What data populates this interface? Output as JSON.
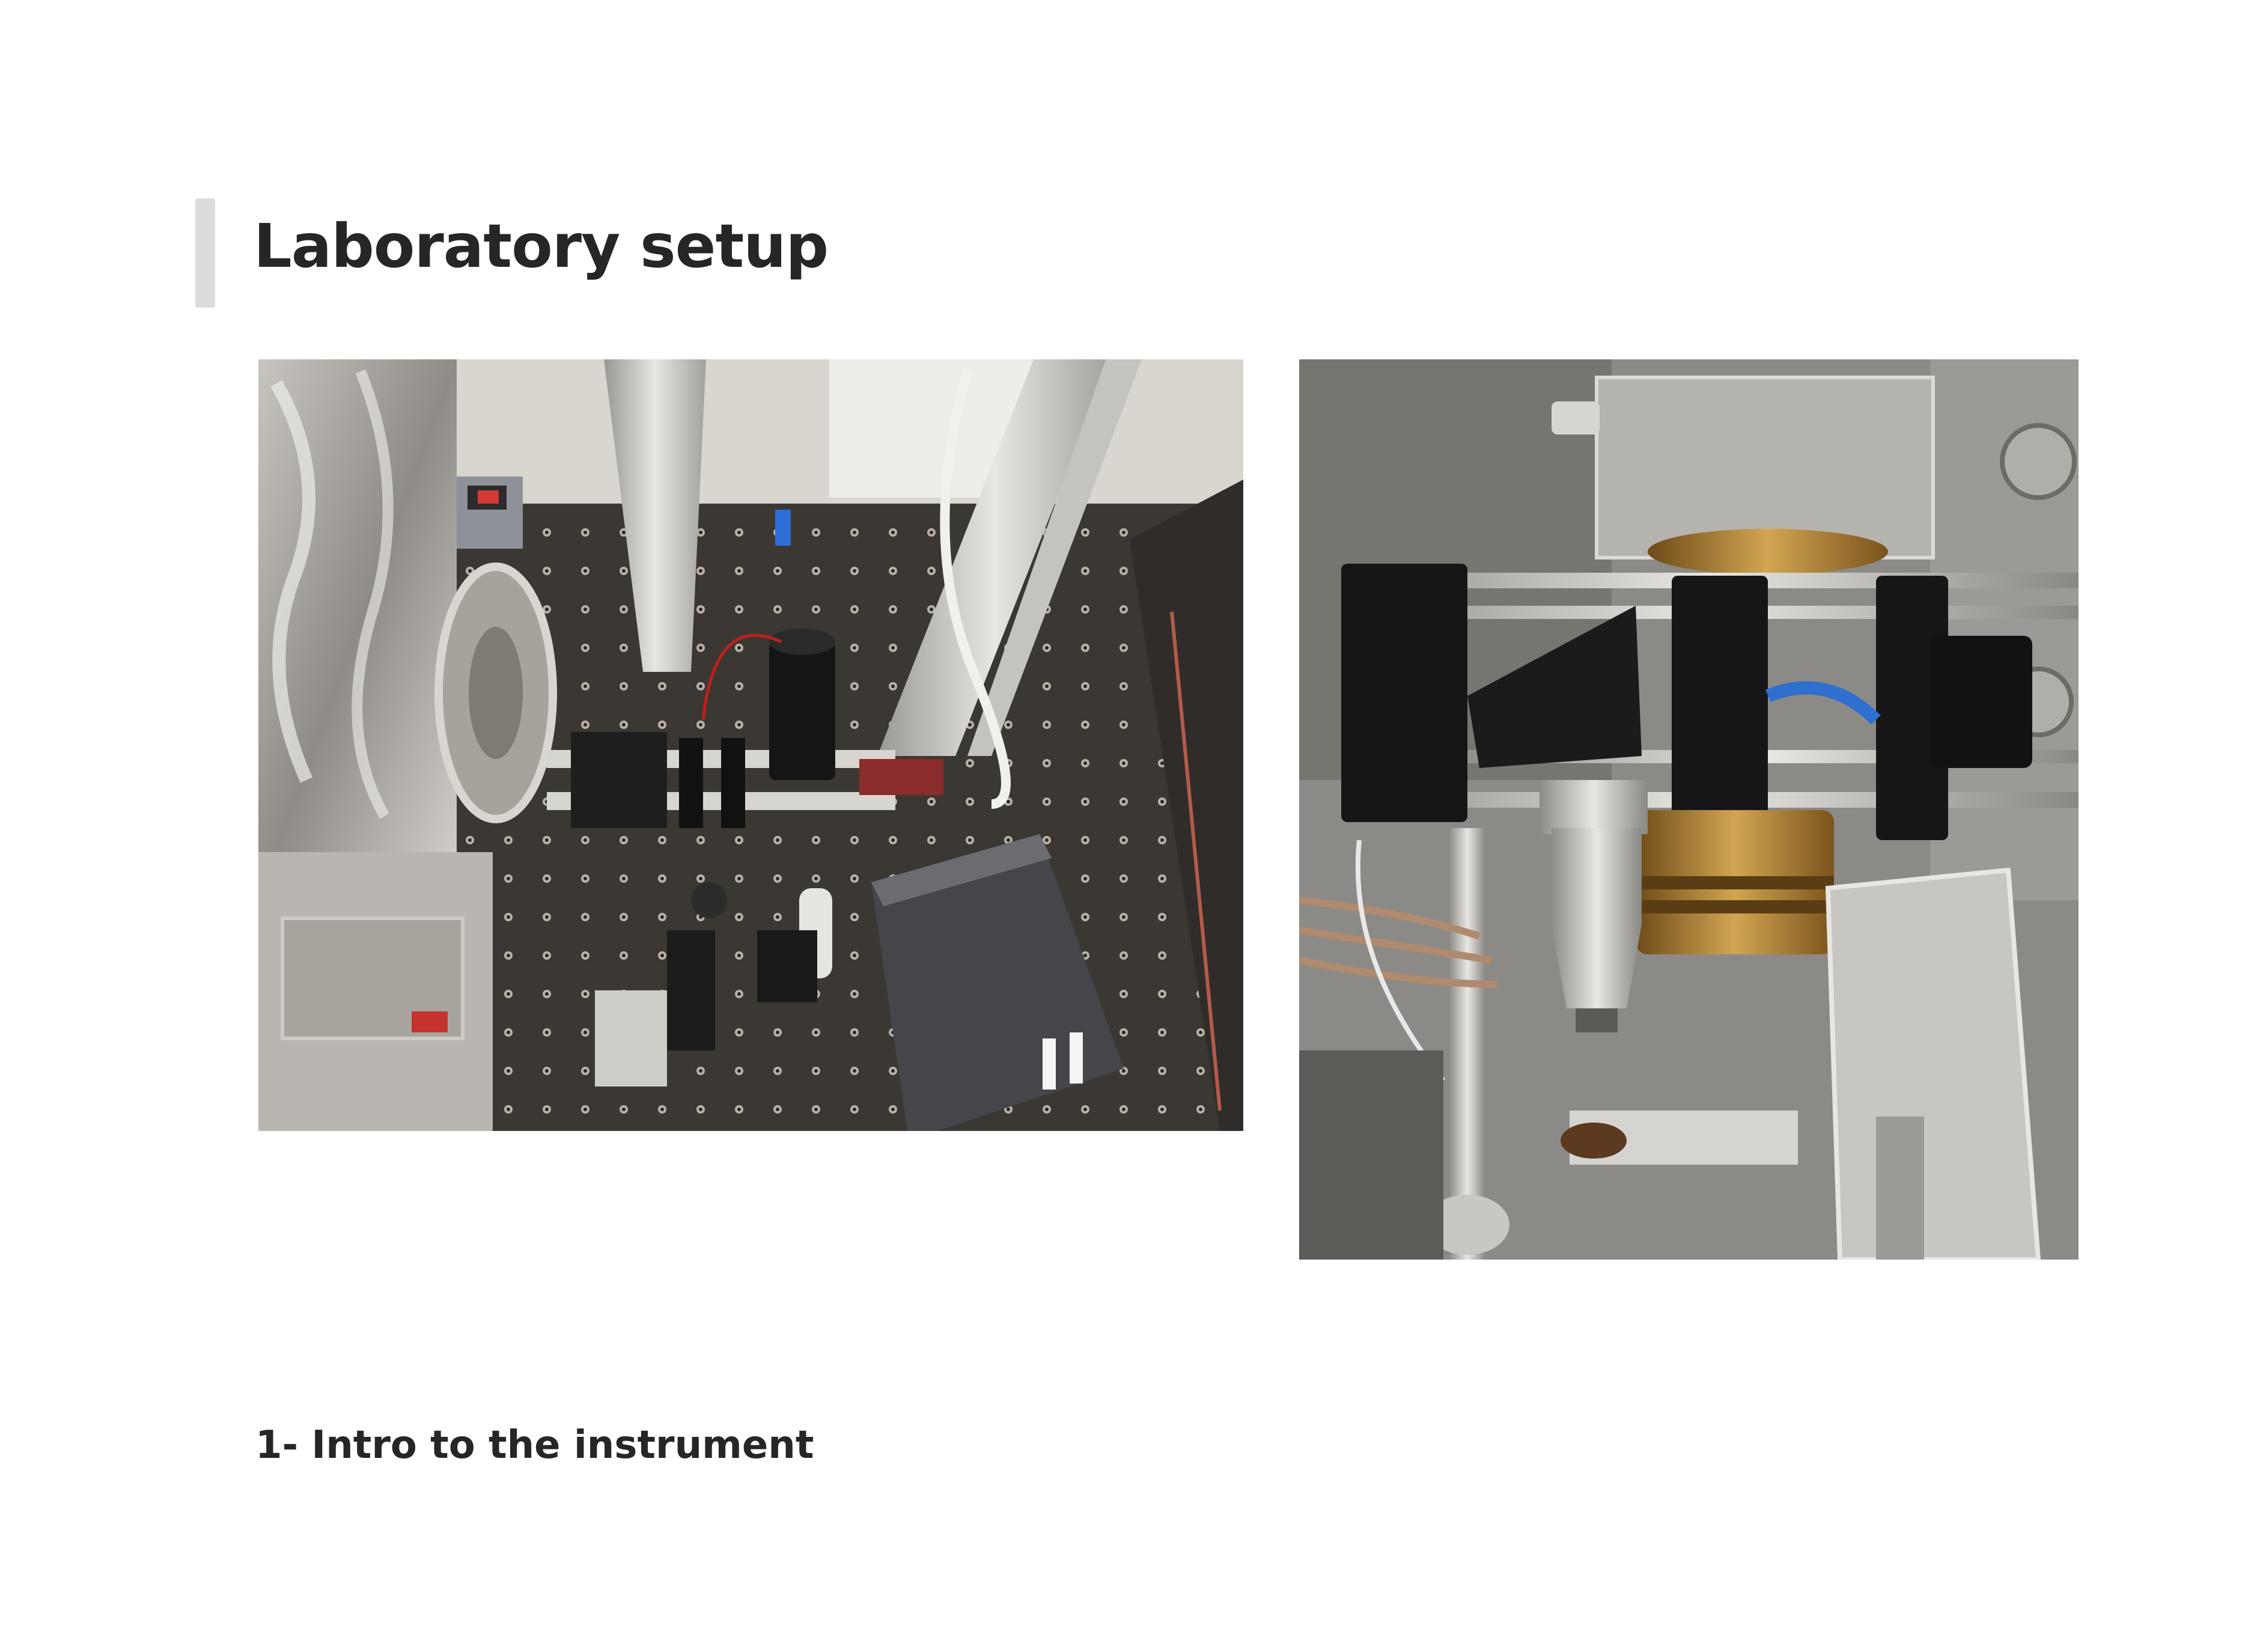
{
  "slide": {
    "title": "Laboratory setup",
    "section_caption": "1- Intro to the instrument"
  },
  "photos": [
    {
      "icon": "optical-table-photo"
    },
    {
      "icon": "vacuum-chamber-photo"
    }
  ],
  "colors": {
    "accent_bar": "#dcdcdc",
    "title_text": "#262626",
    "background": "#ffffff"
  }
}
